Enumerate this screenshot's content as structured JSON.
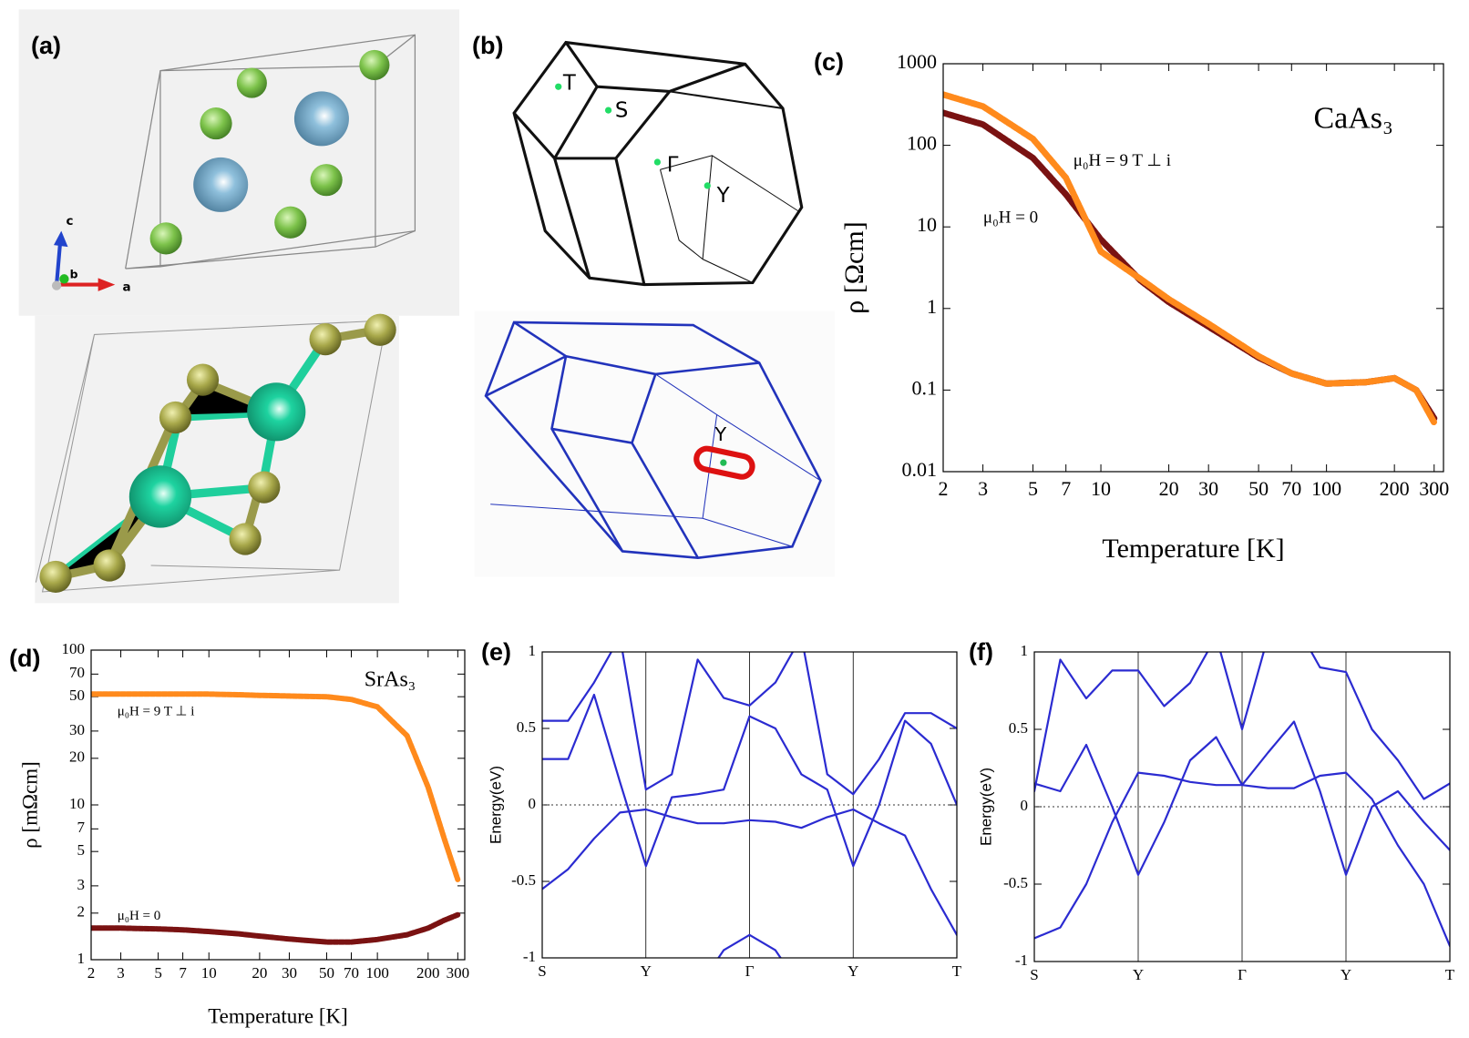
{
  "panel_labels": [
    "(a)",
    "(b)",
    "(c)",
    "(d)",
    "(e)",
    "(f)"
  ],
  "structure_axes": [
    "c",
    "b",
    "a"
  ],
  "bz_points": [
    "T",
    "S",
    "Γ",
    "Y"
  ],
  "bz_lower_point": "Y",
  "chart_data": [
    {
      "type": "line",
      "annotation": "CaAs₃",
      "xlabel": "Temperature [K]",
      "ylabel": "ρ [Ωcm]",
      "xscale": "log",
      "yscale": "log",
      "xlim": [
        2,
        330
      ],
      "ylim": [
        0.01,
        1000
      ],
      "xticks": [
        2,
        3,
        5,
        7,
        10,
        20,
        30,
        50,
        70,
        100,
        200,
        300
      ],
      "yticks": [
        0.01,
        0.1,
        1,
        10,
        100,
        1000
      ],
      "x": [
        2,
        3,
        5,
        7,
        10,
        15,
        20,
        30,
        50,
        70,
        100,
        150,
        200,
        250,
        300
      ],
      "series": [
        {
          "name": "μ₀H = 0",
          "color": "#7a1212",
          "values": [
            250,
            180,
            70,
            25,
            7,
            2.2,
            1.2,
            0.6,
            0.25,
            0.16,
            0.12,
            0.125,
            0.14,
            0.1,
            0.045
          ]
        },
        {
          "name": "μ₀H = 9 T ⊥ i",
          "color": "#ff8a1c",
          "values": [
            420,
            300,
            120,
            40,
            5,
            2.3,
            1.3,
            0.65,
            0.26,
            0.16,
            0.12,
            0.125,
            0.14,
            0.1,
            0.04
          ]
        }
      ]
    },
    {
      "type": "line",
      "annotation": "SrAs₃",
      "xlabel": "Temperature [K]",
      "ylabel": "ρ [mΩcm]",
      "xscale": "log",
      "yscale": "log",
      "xlim": [
        2,
        330
      ],
      "ylim": [
        1,
        100
      ],
      "xticks": [
        2,
        3,
        5,
        7,
        10,
        20,
        30,
        50,
        70,
        100,
        200,
        300
      ],
      "yticks": [
        1,
        2,
        3,
        5,
        7,
        10,
        20,
        30,
        50,
        70,
        100
      ],
      "x": [
        2,
        3,
        5,
        7,
        10,
        15,
        20,
        30,
        50,
        70,
        100,
        150,
        200,
        250,
        300
      ],
      "series": [
        {
          "name": "μ₀H = 9 T ⊥ i",
          "color": "#ff8a1c",
          "values": [
            52,
            52,
            52,
            52,
            52,
            51.5,
            51,
            50.5,
            50,
            48,
            43,
            28,
            13,
            6,
            3.3
          ]
        },
        {
          "name": "μ₀H = 0",
          "color": "#7a1212",
          "values": [
            1.6,
            1.6,
            1.58,
            1.56,
            1.52,
            1.47,
            1.42,
            1.36,
            1.3,
            1.3,
            1.35,
            1.45,
            1.6,
            1.8,
            1.95
          ]
        }
      ]
    },
    {
      "type": "line",
      "ylabel": "Energy(eV)",
      "xlim": [
        0,
        4
      ],
      "ylim": [
        -1,
        1
      ],
      "zero_line": true,
      "xgrid": true,
      "xticks": [
        {
          "value": 0,
          "label": "S"
        },
        {
          "value": 1,
          "label": "Y"
        },
        {
          "value": 2,
          "label": "Γ"
        },
        {
          "value": 3,
          "label": "Y"
        },
        {
          "value": 4,
          "label": "T"
        }
      ],
      "yticks": [
        -1,
        -0.5,
        0,
        0.5,
        1
      ],
      "x": [
        0,
        0.25,
        0.5,
        0.75,
        1,
        1.25,
        1.5,
        1.75,
        2,
        2.25,
        2.5,
        2.75,
        3,
        3.25,
        3.5,
        3.75,
        4
      ],
      "series": [
        {
          "color": "#2b2bd1",
          "values": [
            -0.55,
            -0.42,
            -0.22,
            -0.05,
            -0.03,
            -0.08,
            -0.12,
            -0.12,
            -0.1,
            -0.11,
            -0.15,
            -0.08,
            -0.03,
            -0.12,
            -0.2,
            -0.55,
            -0.85
          ]
        },
        {
          "color": "#2b2bd1",
          "values": [
            0.3,
            0.3,
            0.72,
            0.15,
            -0.4,
            0.05,
            0.07,
            0.1,
            0.58,
            0.5,
            0.2,
            0.1,
            -0.4,
            0.0,
            0.55,
            0.4,
            0.0
          ]
        },
        {
          "color": "#2b2bd1",
          "values": [
            0.55,
            0.55,
            0.8,
            1.1,
            0.1,
            0.2,
            0.95,
            0.7,
            0.65,
            0.8,
            1.1,
            0.2,
            0.07,
            0.3,
            0.6,
            0.6,
            0.5
          ]
        },
        {
          "color": "#2b2bd1",
          "values": [
            null,
            null,
            null,
            null,
            null,
            null,
            -1.2,
            -0.95,
            -0.85,
            -0.95,
            -1.2,
            null,
            null,
            null,
            null,
            null,
            null
          ]
        }
      ]
    },
    {
      "type": "line",
      "ylabel": "Energy(eV)",
      "xlim": [
        0,
        4
      ],
      "ylim": [
        -1,
        1
      ],
      "zero_line": true,
      "xgrid": true,
      "xticks": [
        {
          "value": 0,
          "label": "S"
        },
        {
          "value": 1,
          "label": "Y"
        },
        {
          "value": 2,
          "label": "Γ"
        },
        {
          "value": 3,
          "label": "Y"
        },
        {
          "value": 4,
          "label": "T"
        }
      ],
      "yticks": [
        -1,
        -0.5,
        0,
        0.5,
        1
      ],
      "x": [
        0,
        0.25,
        0.5,
        0.75,
        1,
        1.25,
        1.5,
        1.75,
        2,
        2.25,
        2.5,
        2.75,
        3,
        3.25,
        3.5,
        3.75,
        4
      ],
      "series": [
        {
          "color": "#2b2bd1",
          "values": [
            -0.85,
            -0.78,
            -0.5,
            -0.1,
            0.22,
            0.2,
            0.16,
            0.14,
            0.14,
            0.12,
            0.12,
            0.2,
            0.22,
            0.05,
            -0.25,
            -0.5,
            -0.9
          ]
        },
        {
          "color": "#2b2bd1",
          "values": [
            0.15,
            0.1,
            0.4,
            0.0,
            -0.44,
            -0.1,
            0.3,
            0.45,
            0.14,
            0.35,
            0.55,
            0.1,
            -0.44,
            0.0,
            0.1,
            -0.1,
            -0.28
          ]
        },
        {
          "color": "#2b2bd1",
          "values": [
            0.1,
            0.95,
            0.7,
            0.88,
            0.88,
            0.65,
            0.8,
            1.1,
            0.5,
            1.1,
            1.2,
            0.9,
            0.87,
            0.5,
            0.3,
            0.05,
            0.15
          ]
        }
      ]
    }
  ]
}
